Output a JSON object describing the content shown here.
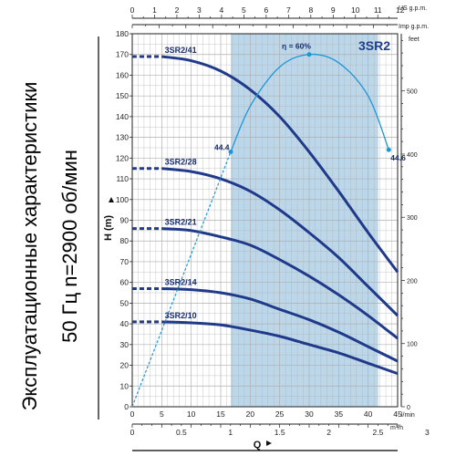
{
  "side_title": {
    "line1": "Эксплуатационные характеристики",
    "line2": "50 Гц  n=2900 об/мин"
  },
  "model": "3SR2",
  "colors": {
    "curve": "#1f3a8a",
    "efficiency": "#1e96d6",
    "band": "#bcd7ea",
    "grid": "#b0b0b0",
    "background": "#ffffff"
  },
  "chart_data": {
    "type": "line",
    "xlabel": "Q",
    "ylabel": "H (m)",
    "xlim": [
      0,
      45
    ],
    "ylim": [
      0,
      180
    ],
    "x_unit": "l/min",
    "x_unit_m3h": "m³/h",
    "y_unit_right": "feet",
    "x_unit_us": "US g.p.m.",
    "x_unit_imp": "Imp g.p.m.",
    "x_ticks": [
      "0",
      "5",
      "10",
      "15",
      "20",
      "25",
      "30",
      "35",
      "40",
      "45"
    ],
    "x_ticks_m3h": [
      "0",
      "0.5",
      "1",
      "1.5",
      "2",
      "2.5",
      "3",
      "3.5",
      "4"
    ],
    "x_ticks_us": [
      "0",
      "1",
      "2",
      "3",
      "4",
      "5",
      "6",
      "7",
      "8",
      "9",
      "10",
      "11",
      "12"
    ],
    "x_ticks_imp": [
      "0",
      "1",
      "2",
      "3",
      "4",
      "5",
      "6",
      "7",
      "8",
      "9",
      "10"
    ],
    "y_ticks": [
      "0",
      "10",
      "20",
      "30",
      "40",
      "50",
      "60",
      "70",
      "80",
      "90",
      "100",
      "110",
      "120",
      "130",
      "140",
      "150",
      "160",
      "170",
      "180"
    ],
    "y_ticks_feet": [
      "0",
      "100",
      "200",
      "300",
      "400",
      "500"
    ],
    "operating_range": [
      16.7,
      41.7
    ],
    "series": [
      {
        "name": "3SR2/41",
        "x": [
          0,
          5,
          10,
          15,
          20,
          25,
          30,
          35,
          40,
          45
        ],
        "y": [
          169,
          169,
          167,
          162,
          153,
          140,
          123,
          104,
          84,
          65
        ],
        "dashed_until": 5
      },
      {
        "name": "3SR2/28",
        "x": [
          0,
          5,
          10,
          15,
          20,
          25,
          30,
          35,
          40,
          45
        ],
        "y": [
          115,
          115,
          113.5,
          110,
          104,
          95,
          84,
          72,
          58,
          44
        ],
        "dashed_until": 5
      },
      {
        "name": "3SR2/21",
        "x": [
          0,
          5,
          10,
          15,
          20,
          25,
          30,
          35,
          40,
          45
        ],
        "y": [
          86,
          86,
          85,
          82,
          78,
          71,
          63,
          54,
          44,
          33
        ],
        "dashed_until": 5
      },
      {
        "name": "3SR2/14",
        "x": [
          0,
          5,
          10,
          15,
          20,
          25,
          30,
          35,
          40,
          45
        ],
        "y": [
          57,
          57,
          56.5,
          55,
          52,
          47,
          42,
          36,
          29,
          22
        ],
        "dashed_until": 5
      },
      {
        "name": "3SR2/10",
        "x": [
          0,
          5,
          10,
          15,
          20,
          25,
          30,
          35,
          40,
          45
        ],
        "y": [
          41,
          41,
          40.5,
          39.5,
          37,
          34,
          30,
          26,
          21,
          16
        ],
        "dashed_until": 5
      }
    ],
    "efficiency": {
      "label": "η = 60%",
      "x": [
        0,
        16.7,
        20,
        25,
        30,
        35,
        40,
        43.5
      ],
      "y": [
        0,
        123,
        145,
        164,
        170,
        166,
        150,
        124
      ],
      "dashed_until": 16.7,
      "start_label": "44.4",
      "end_label": "44.6"
    }
  }
}
